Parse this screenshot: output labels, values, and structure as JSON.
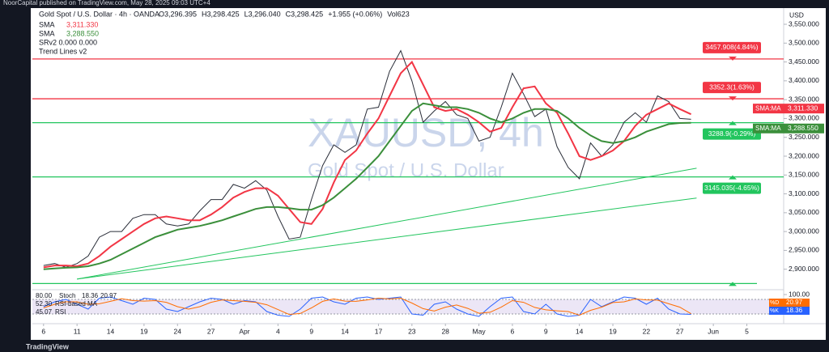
{
  "published": "NoorCapital published on TradingView.com, May 28, 2025 09:03 UTC+4",
  "footer": "TradingView",
  "chart_data": {
    "type": "line",
    "symbol": "Gold Spot / U.S. Dollar · 4h · OANDA",
    "ohlc": [
      "O3,296.395",
      "H3,298.425",
      "L3,296.040",
      "C3,298.425",
      "+1.955 (+0.06%)",
      "Vol623"
    ],
    "indicators": [
      "SRv2 0.000 0.000",
      "Trend Lines v2"
    ],
    "watermark": "XAUUSD, 4h",
    "watermark_subtitle": "Gold Spot / U.S. Dollar",
    "y_unit": "USD",
    "xlim": [
      -1,
      66.3
    ],
    "xticks": [
      {
        "value": 0,
        "label": "6"
      },
      {
        "value": 3,
        "label": "11"
      },
      {
        "value": 6,
        "label": "14"
      },
      {
        "value": 9,
        "label": "19"
      },
      {
        "value": 12,
        "label": "24"
      },
      {
        "value": 15,
        "label": "27"
      },
      {
        "value": 18,
        "label": "Apr"
      },
      {
        "value": 21,
        "label": "4"
      },
      {
        "value": 24,
        "label": "9"
      },
      {
        "value": 27,
        "label": "14"
      },
      {
        "value": 30,
        "label": "17"
      },
      {
        "value": 33,
        "label": "23"
      },
      {
        "value": 36,
        "label": "28"
      },
      {
        "value": 39,
        "label": "May"
      },
      {
        "value": 42,
        "label": "6"
      },
      {
        "value": 45,
        "label": "9"
      },
      {
        "value": 48,
        "label": "14"
      },
      {
        "value": 51,
        "label": "19"
      },
      {
        "value": 54,
        "label": "22"
      },
      {
        "value": 57,
        "label": "27"
      },
      {
        "value": 60,
        "label": "Jun"
      },
      {
        "value": 63,
        "label": "5"
      }
    ],
    "ylim": [
      2850,
      3550
    ],
    "yticks": [
      {
        "value": 2900,
        "label": "2,900.000"
      },
      {
        "value": 2950,
        "label": "2,950.000"
      },
      {
        "value": 3000,
        "label": "3,000.000"
      },
      {
        "value": 3050,
        "label": "3,050.000"
      },
      {
        "value": 3100,
        "label": "3,100.000"
      },
      {
        "value": 3150,
        "label": "3,150.000"
      },
      {
        "value": 3200,
        "label": "3,200.000"
      },
      {
        "value": 3250,
        "label": "3,250.000"
      },
      {
        "value": 3300,
        "label": "3,300.000"
      },
      {
        "value": 3350,
        "label": "3,350.000"
      },
      {
        "value": 3400,
        "label": "3,400.000"
      },
      {
        "value": 3450,
        "label": "3,450.000"
      },
      {
        "value": 3500,
        "label": "3,500.000"
      },
      {
        "value": 3550,
        "label": "3,550.000"
      }
    ],
    "price": {
      "color": "#2a2e39",
      "values": [
        2910,
        2915,
        2905,
        2915,
        2935,
        2985,
        3000,
        3000,
        3035,
        3045,
        3045,
        3020,
        3015,
        3020,
        3055,
        3085,
        3085,
        3125,
        3115,
        3135,
        3110,
        3040,
        2980,
        2985,
        3085,
        3175,
        3230,
        3210,
        3230,
        3325,
        3330,
        3425,
        3480,
        3400,
        3290,
        3320,
        3345,
        3310,
        3300,
        3240,
        3250,
        3330,
        3420,
        3365,
        3305,
        3325,
        3225,
        3170,
        3140,
        3235,
        3200,
        3230,
        3290,
        3315,
        3290,
        3360,
        3345,
        3300,
        3298
      ]
    },
    "series": [
      {
        "name": "SMA",
        "value_label": "3,311.330",
        "tag": "SMA:MA",
        "color": "#f23645",
        "values": [
          2905,
          2910,
          2910,
          2908,
          2915,
          2935,
          2960,
          2980,
          3000,
          3020,
          3035,
          3040,
          3035,
          3030,
          3030,
          3045,
          3065,
          3090,
          3105,
          3115,
          3115,
          3095,
          3060,
          3025,
          3020,
          3060,
          3130,
          3190,
          3215,
          3260,
          3300,
          3360,
          3420,
          3450,
          3390,
          3330,
          3320,
          3325,
          3310,
          3290,
          3265,
          3275,
          3330,
          3380,
          3385,
          3340,
          3315,
          3260,
          3200,
          3190,
          3200,
          3215,
          3240,
          3280,
          3310,
          3325,
          3340,
          3325,
          3311.33
        ]
      },
      {
        "name": "SMA",
        "value_label": "3,288.550",
        "tag": "SMA:MA",
        "color": "#3b8f3b",
        "values": [
          2900,
          2902,
          2904,
          2905,
          2908,
          2915,
          2925,
          2940,
          2955,
          2970,
          2985,
          2995,
          3005,
          3010,
          3015,
          3022,
          3030,
          3040,
          3050,
          3060,
          3065,
          3065,
          3062,
          3058,
          3058,
          3070,
          3090,
          3115,
          3140,
          3170,
          3200,
          3240,
          3280,
          3320,
          3340,
          3335,
          3330,
          3330,
          3325,
          3315,
          3300,
          3290,
          3300,
          3315,
          3325,
          3325,
          3320,
          3300,
          3275,
          3255,
          3240,
          3235,
          3240,
          3250,
          3265,
          3275,
          3285,
          3288,
          3288.55
        ]
      }
    ],
    "levels": [
      {
        "value": 3457.908,
        "label": "3457.908(4.84%)",
        "color": "#f23645"
      },
      {
        "value": 3352.3,
        "label": "3352.3(1.63%)",
        "color": "#f23645"
      },
      {
        "value": 3288.9,
        "label": "3288.9(-0.29%)",
        "color": "#22c55e"
      },
      {
        "value": 3145.035,
        "label": "3145.035(-4.65%)",
        "color": "#22c55e"
      },
      {
        "value": 2862,
        "color": "#22c55e"
      }
    ],
    "trend_lines": [
      {
        "x": [
          3,
          58.5
        ],
        "y": [
          2874,
          3168
        ],
        "color": "#22c55e"
      },
      {
        "x": [
          3,
          58.5
        ],
        "y": [
          2874,
          3089
        ],
        "color": "#22c55e"
      }
    ],
    "oscillator": {
      "ylim": [
        0,
        100
      ],
      "band": [
        20,
        80
      ],
      "yticks": [
        {
          "value": 100,
          "label": "100.00"
        }
      ],
      "texts": [
        "80.00",
        "Stoch",
        "18.36",
        "20.97",
        "52.30",
        "RSI-based MA",
        "45.07",
        "RSI"
      ],
      "series": [
        {
          "name": "%K",
          "value_label": "18.36",
          "color": "#2962ff",
          "values": [
            50,
            70,
            80,
            60,
            40,
            85,
            90,
            75,
            60,
            85,
            80,
            40,
            30,
            50,
            70,
            85,
            80,
            60,
            75,
            70,
            30,
            15,
            10,
            40,
            85,
            90,
            70,
            60,
            85,
            90,
            80,
            85,
            90,
            20,
            15,
            60,
            70,
            40,
            20,
            10,
            50,
            85,
            90,
            30,
            20,
            60,
            20,
            10,
            15,
            80,
            50,
            70,
            90,
            85,
            60,
            85,
            40,
            20,
            18.36
          ]
        },
        {
          "name": "%D",
          "value_label": "20.97",
          "color": "#ff6d00",
          "values": [
            45,
            60,
            70,
            70,
            60,
            62,
            72,
            83,
            75,
            73,
            75,
            68,
            50,
            40,
            50,
            68,
            78,
            75,
            72,
            68,
            58,
            38,
            18,
            22,
            45,
            72,
            82,
            73,
            72,
            78,
            85,
            82,
            85,
            65,
            42,
            32,
            48,
            57,
            43,
            23,
            27,
            48,
            75,
            68,
            47,
            37,
            33,
            30,
            15,
            35,
            48,
            67,
            70,
            82,
            78,
            77,
            62,
            48,
            20.97
          ]
        }
      ]
    }
  }
}
